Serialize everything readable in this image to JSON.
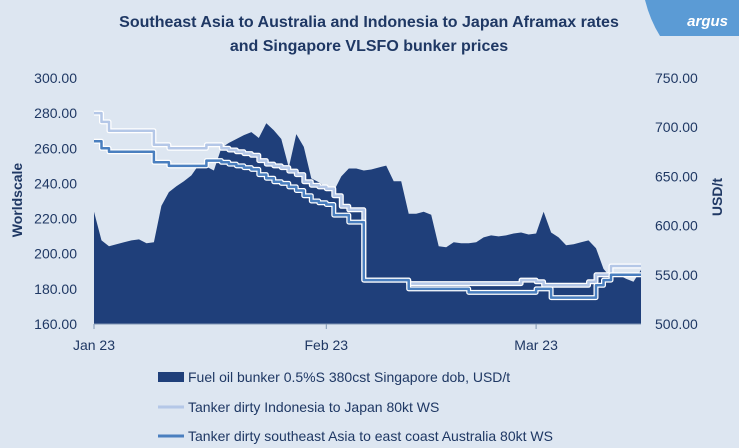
{
  "brand": {
    "logo_text": "argus",
    "logo_color": "#5b9bd5"
  },
  "chart_data": {
    "type": "area",
    "title": "Southeast Asia to Australia and Indonesia to Japan Aframax rates and Singapore VLSFO bunker prices",
    "title_lines": [
      "Southeast Asia to Australia and Indonesia to Japan Aframax rates",
      "and Singapore VLSFO bunker prices"
    ],
    "ylabel": "Worldscale",
    "y2label": "USD/t",
    "ylim": [
      160,
      300
    ],
    "y2lim": [
      500,
      750
    ],
    "y_ticks": [
      "300.00",
      "280.00",
      "260.00",
      "240.00",
      "220.00",
      "200.00",
      "180.00",
      "160.00"
    ],
    "y2_ticks": [
      "750.00",
      "700.00",
      "650.00",
      "600.00",
      "550.00",
      "500.00"
    ],
    "x_ticks": [
      "Jan 23",
      "Feb 23",
      "Mar 23"
    ],
    "x_tick_day": [
      1,
      32,
      60
    ],
    "grid": false,
    "legend_position": "bottom",
    "series": [
      {
        "name": "Fuel oil bunker 0.5%S 380cst Singapore dob, USD/t",
        "axis": "right",
        "kind": "area",
        "color": "#1f3f7a",
        "x": [
          1,
          2,
          3,
          4,
          5,
          6,
          7,
          8,
          9,
          10,
          11,
          12,
          13,
          14,
          15,
          16,
          17,
          18,
          19,
          20,
          21,
          22,
          23,
          24,
          25,
          26,
          27,
          28,
          29,
          30,
          31,
          32,
          33,
          34,
          35,
          36,
          37,
          38,
          39,
          40,
          41,
          42,
          43,
          44,
          45,
          46,
          47,
          48,
          49,
          50,
          51,
          52,
          53,
          54,
          55,
          56,
          57,
          58,
          59,
          60,
          61,
          62,
          63,
          64,
          65,
          66,
          67,
          68,
          69,
          70,
          71,
          72,
          73,
          74
        ],
        "values": [
          614,
          585,
          579,
          581,
          583,
          585,
          586,
          582,
          583,
          620,
          634,
          640,
          645,
          651,
          662,
          660,
          656,
          679,
          684,
          688,
          692,
          695,
          689,
          704,
          697,
          688,
          659,
          693,
          680,
          648,
          644,
          639,
          635,
          650,
          658,
          658,
          656,
          657,
          659,
          661,
          645,
          645,
          612,
          612,
          614,
          611,
          579,
          578,
          583,
          582,
          582,
          583,
          588,
          590,
          589,
          590,
          592,
          593,
          591,
          592,
          614,
          593,
          588,
          580,
          581,
          583,
          585,
          577,
          556,
          547,
          550,
          546,
          543,
          555
        ]
      },
      {
        "name": "Tanker dirty Indonesia to Japan 80kt WS",
        "axis": "left",
        "kind": "line",
        "color": "#b4c7e7",
        "x": [
          1,
          2,
          3,
          4,
          5,
          6,
          7,
          8,
          9,
          10,
          11,
          12,
          13,
          14,
          15,
          16,
          17,
          18,
          19,
          20,
          21,
          22,
          23,
          24,
          25,
          26,
          27,
          28,
          29,
          30,
          31,
          32,
          33,
          34,
          35,
          36,
          37,
          38,
          39,
          40,
          41,
          42,
          43,
          44,
          45,
          46,
          47,
          48,
          49,
          50,
          51,
          52,
          53,
          54,
          55,
          56,
          57,
          58,
          59,
          60,
          61,
          62,
          63,
          64,
          65,
          66,
          67,
          68,
          69,
          70,
          71,
          72,
          73,
          74
        ],
        "values": [
          280,
          275,
          270,
          270,
          270,
          270,
          270,
          270,
          262,
          262,
          260,
          260,
          260,
          260,
          260,
          262,
          262,
          260,
          259,
          258,
          257,
          256,
          253,
          251,
          250,
          249,
          247,
          245,
          241,
          239,
          238,
          237,
          233,
          227,
          225,
          225,
          185,
          185,
          185,
          185,
          185,
          185,
          183,
          183,
          183,
          183,
          183,
          183,
          183,
          183,
          183,
          183,
          183,
          183,
          183,
          183,
          183,
          185,
          185,
          184,
          182,
          182,
          182,
          182,
          182,
          182,
          184,
          188,
          188,
          193,
          193,
          193,
          193,
          193
        ]
      },
      {
        "name": "Tanker dirty southeast Asia to east coast Australia 80kt WS",
        "axis": "left",
        "kind": "line",
        "color": "#4a7fbf",
        "x": [
          1,
          2,
          3,
          4,
          5,
          6,
          7,
          8,
          9,
          10,
          11,
          12,
          13,
          14,
          15,
          16,
          17,
          18,
          19,
          20,
          21,
          22,
          23,
          24,
          25,
          26,
          27,
          28,
          29,
          30,
          31,
          32,
          33,
          34,
          35,
          36,
          37,
          38,
          39,
          40,
          41,
          42,
          43,
          44,
          45,
          46,
          47,
          48,
          49,
          50,
          51,
          52,
          53,
          54,
          55,
          56,
          57,
          58,
          59,
          60,
          61,
          62,
          63,
          64,
          65,
          66,
          67,
          68,
          69,
          70,
          71,
          72,
          73,
          74
        ],
        "values": [
          264,
          260,
          258,
          258,
          258,
          258,
          258,
          258,
          252,
          252,
          250,
          250,
          250,
          250,
          250,
          253,
          253,
          252,
          251,
          250,
          249,
          248,
          245,
          243,
          241,
          240,
          238,
          236,
          233,
          230,
          229,
          228,
          222,
          222,
          218,
          218,
          185,
          185,
          185,
          185,
          185,
          185,
          180,
          180,
          180,
          180,
          180,
          180,
          180,
          180,
          178,
          178,
          178,
          178,
          178,
          178,
          178,
          178,
          178,
          180,
          180,
          175,
          175,
          175,
          175,
          175,
          175,
          182,
          185,
          188,
          188,
          188,
          188,
          188
        ]
      }
    ]
  }
}
